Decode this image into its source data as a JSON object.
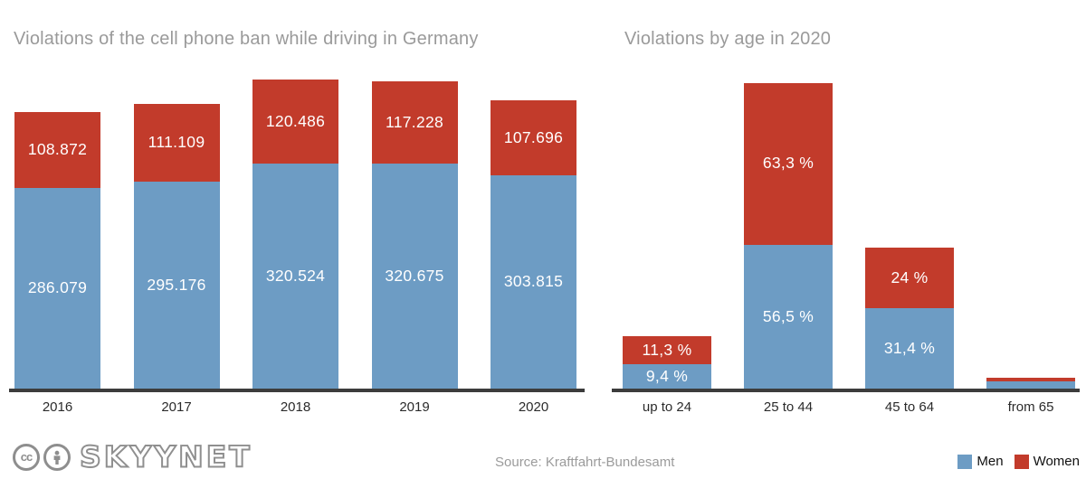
{
  "charts_common": {
    "colors": {
      "men": "#6d9cc4",
      "women": "#c23b2b",
      "axis": "#3c3c3c",
      "title": "#9a9a9a",
      "tick": "#2b2b2b",
      "bar_label": "#ffffff"
    }
  },
  "chart_data": [
    {
      "type": "bar",
      "stacked": true,
      "title": "Violations of the cell phone ban while driving in Germany",
      "categories": [
        "2016",
        "2017",
        "2018",
        "2019",
        "2020"
      ],
      "series": [
        {
          "name": "Men",
          "color_key": "men",
          "values": [
            286079,
            295176,
            320524,
            320675,
            303815
          ],
          "labels": [
            "286.079",
            "295.176",
            "320.524",
            "320.675",
            "303.815"
          ]
        },
        {
          "name": "Women",
          "color_key": "women",
          "values": [
            108872,
            111109,
            120486,
            117228,
            107696
          ],
          "labels": [
            "108.872",
            "111.109",
            "120.486",
            "117.228",
            "107.696"
          ]
        }
      ],
      "ylim": [
        0,
        451000
      ],
      "grid": false,
      "legend_position": "shared-footer"
    },
    {
      "type": "bar",
      "stacked": true,
      "title": "Violations by age in 2020",
      "categories": [
        "up to 24",
        "25 to 44",
        "45 to 64",
        "from 65"
      ],
      "unit": "%",
      "series": [
        {
          "name": "Men",
          "color_key": "men",
          "values": [
            9.4,
            56.5,
            31.4,
            2.7
          ],
          "labels": [
            "9,4 %",
            "56,5 %",
            "31,4 %",
            ""
          ]
        },
        {
          "name": "Women",
          "color_key": "women",
          "values": [
            11.3,
            63.3,
            24,
            1.4
          ],
          "labels": [
            "11,3 %",
            "63,3 %",
            "24 %",
            ""
          ]
        }
      ],
      "ylim": [
        0,
        124
      ],
      "grid": false,
      "legend_position": "shared-footer"
    }
  ],
  "footer": {
    "logo": {
      "cc_label": "cc",
      "person_icon": "attribution-person-icon",
      "brand": "SKYYNET"
    },
    "source": "Source: Kraftfahrt-Bundesamt",
    "legend": [
      {
        "label": "Men",
        "color": "#6d9cc4"
      },
      {
        "label": "Women",
        "color": "#c23b2b"
      }
    ]
  }
}
